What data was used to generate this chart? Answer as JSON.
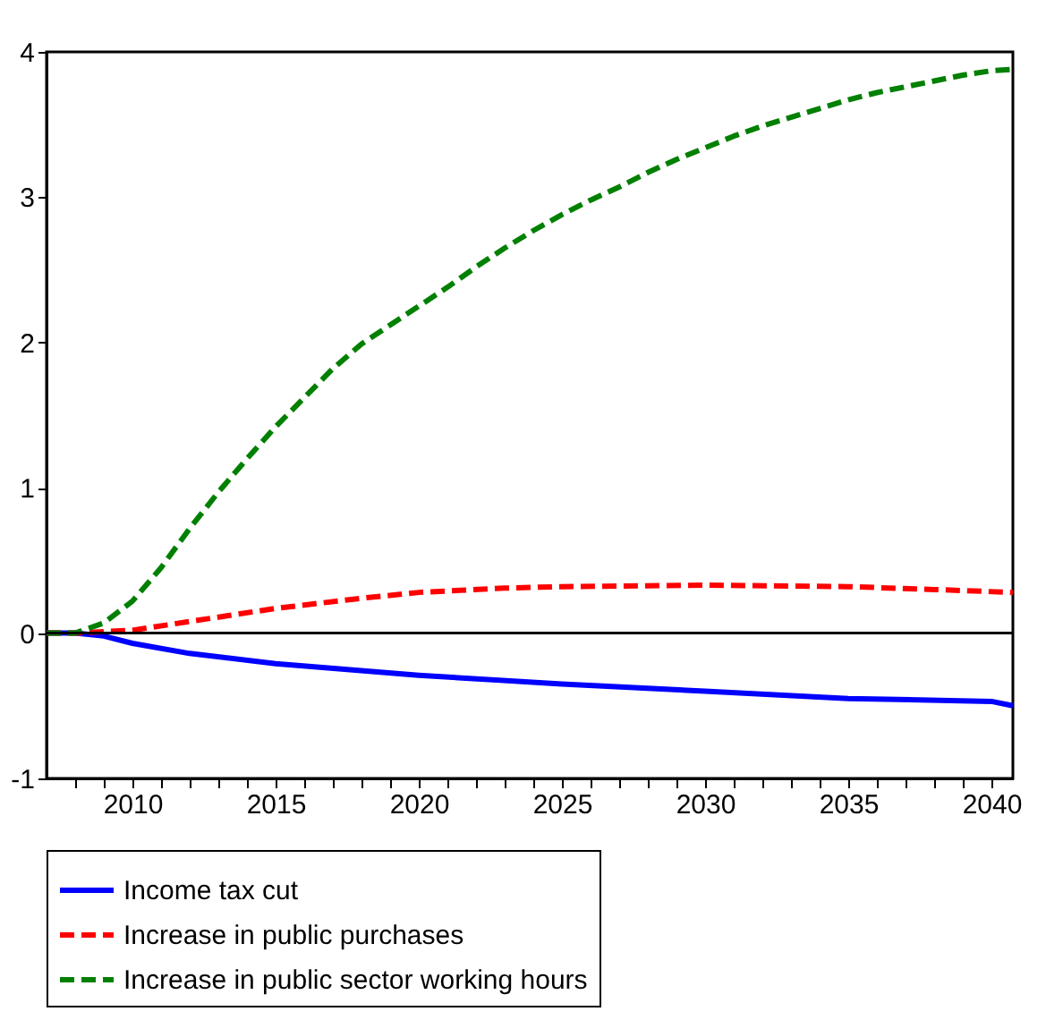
{
  "chart_data": {
    "type": "line",
    "xlim": [
      2007,
      2040.75
    ],
    "ylim": [
      -1,
      4
    ],
    "yticks": [
      -1,
      0,
      1,
      2,
      3,
      4
    ],
    "xticks": [
      {
        "value": 2008,
        "label": null
      },
      {
        "value": 2009,
        "label": null
      },
      2010,
      {
        "value": 2011,
        "label": null
      },
      {
        "value": 2012,
        "label": null
      },
      {
        "value": 2013,
        "label": null
      },
      {
        "value": 2014,
        "label": null
      },
      2015,
      {
        "value": 2016,
        "label": null
      },
      {
        "value": 2017,
        "label": null
      },
      {
        "value": 2018,
        "label": null
      },
      {
        "value": 2019,
        "label": null
      },
      2020,
      {
        "value": 2021,
        "label": null
      },
      {
        "value": 2022,
        "label": null
      },
      {
        "value": 2023,
        "label": null
      },
      {
        "value": 2024,
        "label": null
      },
      2025,
      {
        "value": 2026,
        "label": null
      },
      {
        "value": 2027,
        "label": null
      },
      {
        "value": 2028,
        "label": null
      },
      {
        "value": 2029,
        "label": null
      },
      2030,
      {
        "value": 2031,
        "label": null
      },
      {
        "value": 2032,
        "label": null
      },
      {
        "value": 2033,
        "label": null
      },
      {
        "value": 2034,
        "label": null
      },
      2035,
      {
        "value": 2036,
        "label": null
      },
      {
        "value": 2037,
        "label": null
      },
      {
        "value": 2038,
        "label": null
      },
      {
        "value": 2039,
        "label": null
      },
      2040
    ],
    "grid": false,
    "legend": "bottom",
    "marker": "none",
    "ref_lines": [
      {
        "axis": "y",
        "value": 0,
        "color": "#000000"
      }
    ],
    "series": [
      {
        "name": "Income tax cut",
        "color": "#0000ff",
        "line_style": "solid",
        "x": [
          2007,
          2008,
          2009,
          2010,
          2012,
          2015,
          2020,
          2025,
          2030,
          2035,
          2040,
          2040.75
        ],
        "values": [
          0,
          0,
          -0.02,
          -0.07,
          -0.14,
          -0.21,
          -0.29,
          -0.35,
          -0.4,
          -0.45,
          -0.47,
          -0.5
        ]
      },
      {
        "name": "Increase in public purchases",
        "color": "#ff0000",
        "line_style": "dashed",
        "x": [
          2007,
          2008,
          2010,
          2012,
          2015,
          2018,
          2020,
          2023,
          2025,
          2030,
          2035,
          2038,
          2040.75
        ],
        "values": [
          0,
          0,
          0.02,
          0.08,
          0.17,
          0.24,
          0.28,
          0.31,
          0.32,
          0.33,
          0.32,
          0.3,
          0.28
        ]
      },
      {
        "name": "Increase in public sector working hours",
        "color": "#008000",
        "line_style": "dashed",
        "x": [
          2007,
          2008,
          2009,
          2010,
          2011,
          2012,
          2013,
          2014,
          2015,
          2016,
          2017,
          2018,
          2019,
          2020,
          2021,
          2022,
          2023,
          2024,
          2025,
          2026,
          2027,
          2028,
          2029,
          2030,
          2031,
          2032,
          2033,
          2034,
          2035,
          2036,
          2037,
          2038,
          2039,
          2040,
          2040.75
        ],
        "values": [
          0,
          0,
          0.07,
          0.22,
          0.45,
          0.72,
          0.97,
          1.2,
          1.42,
          1.62,
          1.82,
          1.99,
          2.12,
          2.25,
          2.38,
          2.52,
          2.65,
          2.77,
          2.88,
          2.98,
          3.07,
          3.17,
          3.26,
          3.34,
          3.42,
          3.49,
          3.55,
          3.61,
          3.67,
          3.72,
          3.76,
          3.8,
          3.84,
          3.87,
          3.88
        ]
      }
    ]
  }
}
